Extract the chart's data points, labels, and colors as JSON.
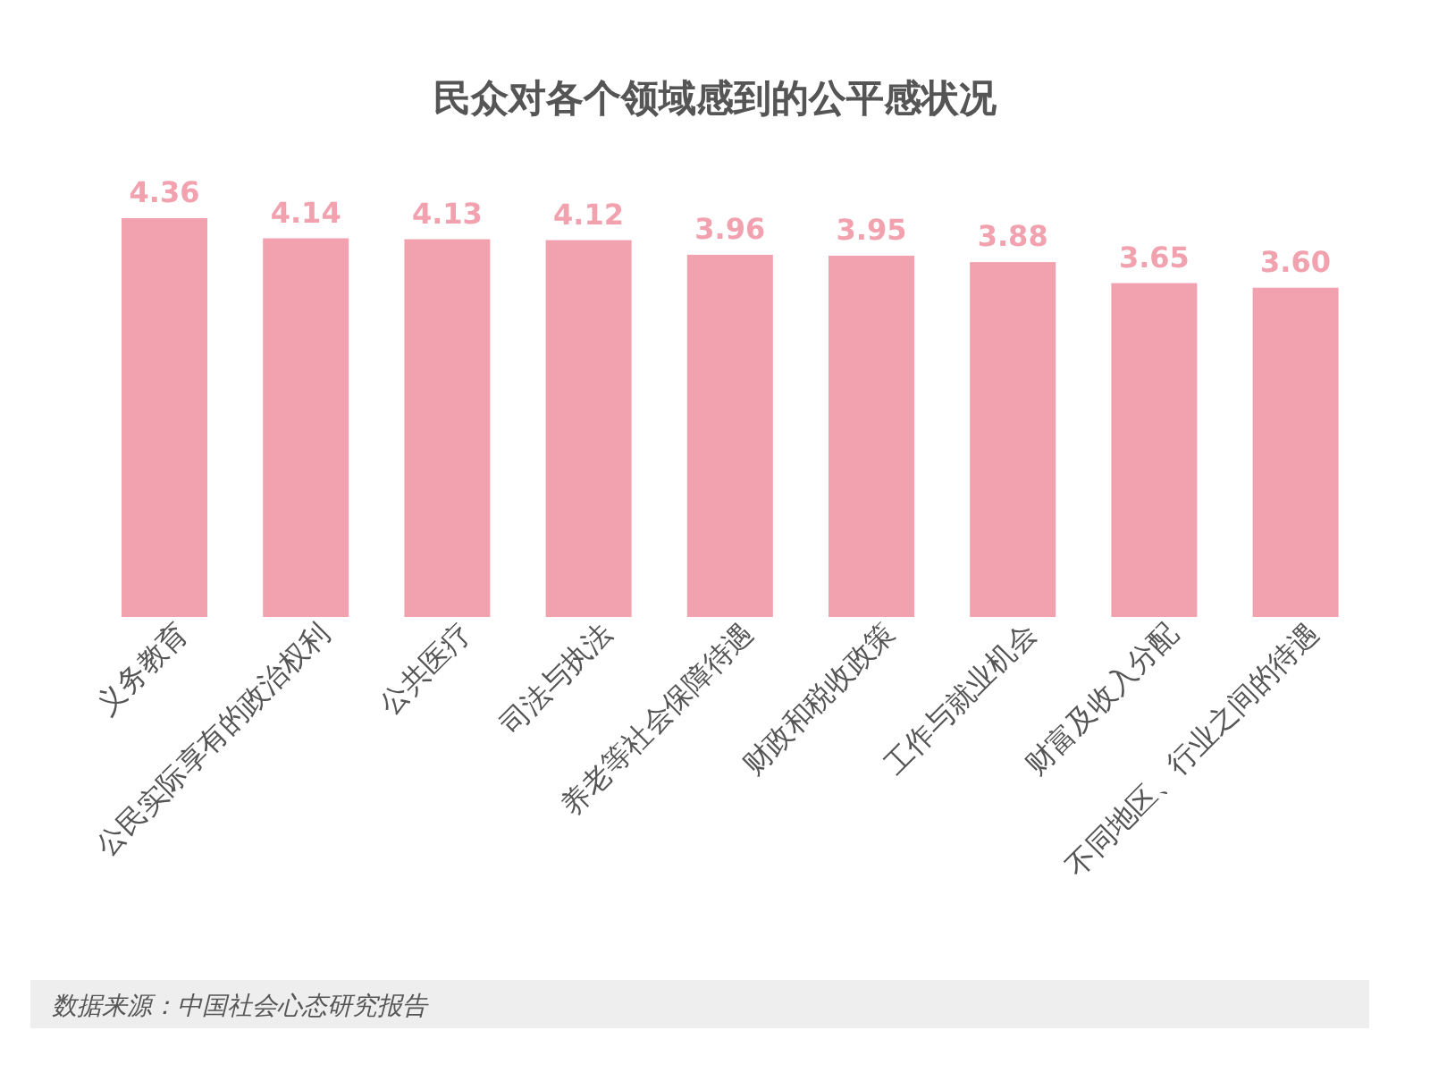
{
  "chart_data": {
    "type": "bar",
    "title": "民众对各个领域感到的公平感状况",
    "categories": [
      "义务教育",
      "公民实际享有的政治权利",
      "公共医疗",
      "司法与执法",
      "养老等社会保障待遇",
      "财政和税收政策",
      "工作与就业机会",
      "财富及收入分配",
      "不同地区、行业之间的待遇"
    ],
    "values": [
      4.36,
      4.14,
      4.13,
      4.12,
      3.96,
      3.95,
      3.88,
      3.65,
      3.6
    ],
    "value_labels": [
      "4.36",
      "4.14",
      "4.13",
      "4.12",
      "3.96",
      "3.95",
      "3.88",
      "3.65",
      "3.60"
    ],
    "color": "#f2a1ae",
    "annotations": [
      "数据来源：中国社会心态研究报告"
    ]
  }
}
